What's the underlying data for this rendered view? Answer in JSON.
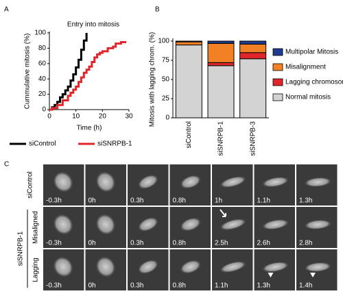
{
  "panel_labels": [
    "A",
    "B",
    "C"
  ],
  "chart_data": [
    {
      "type": "line",
      "title": "Entry into mitosis",
      "x_label": "Time (h)",
      "y_label": "Cummulative mitosis (%)",
      "xlim": [
        0,
        30
      ],
      "xticks": [
        0,
        10,
        20,
        30
      ],
      "ylim": [
        0,
        100
      ],
      "yticks": [
        0,
        20,
        40,
        60,
        80,
        100
      ],
      "step": "post",
      "legend": "bottom",
      "series": [
        {
          "name": "siControl",
          "color": "#000000",
          "x": [
            0,
            1,
            2,
            3,
            4,
            5,
            6,
            7,
            8,
            9,
            10,
            11,
            12,
            13,
            14
          ],
          "values": [
            0,
            3,
            6,
            10,
            16,
            20,
            25,
            30,
            38,
            46,
            55,
            65,
            78,
            90,
            100
          ]
        },
        {
          "name": "siSNRPB-1",
          "color": "#e0262b",
          "x": [
            0,
            1,
            3,
            5,
            7,
            8,
            9,
            10,
            11,
            12,
            13,
            14,
            15,
            16,
            17,
            18,
            19,
            20,
            22,
            24,
            25,
            27,
            29
          ],
          "values": [
            0,
            2,
            6,
            12,
            18,
            22,
            26,
            30,
            36,
            42,
            48,
            52,
            56,
            62,
            68,
            72,
            74,
            76,
            80,
            82,
            86,
            88,
            88
          ]
        }
      ]
    },
    {
      "type": "stacked_bar",
      "y_label": "Mitosis with lagging chrom. (%)",
      "categories": [
        "siControl",
        "siSNRPB-1",
        "siSNRPB-3"
      ],
      "ylim": [
        0,
        100
      ],
      "yticks": [
        0,
        25,
        50,
        75,
        100
      ],
      "legend": "right",
      "series": [
        {
          "name": "Normal mitosis",
          "color": "#d3d3d3",
          "values": [
            95,
            68,
            77
          ]
        },
        {
          "name": "Lagging chromosomes",
          "color": "#e0262b",
          "values": [
            0,
            4,
            8
          ]
        },
        {
          "name": "Misalignment",
          "color": "#f28126",
          "values": [
            4,
            25,
            11
          ]
        },
        {
          "name": "Multipolar Mitosis",
          "color": "#1f3c8f",
          "values": [
            1,
            3,
            4
          ]
        }
      ]
    }
  ],
  "microscopy": {
    "group_label": "siSNRPB-1",
    "rows": [
      {
        "label": "siControl",
        "times": [
          "-0.3h",
          "0h",
          "0.3h",
          "0.8h",
          "1h",
          "1.1h",
          "1.3h"
        ]
      },
      {
        "label": "Misaligned",
        "times": [
          "-0.3h",
          "0h",
          "0.3h",
          "0.8h",
          "2.5h",
          "2.6h",
          "2.8h"
        ]
      },
      {
        "label": "Lagging",
        "times": [
          "-0.3h",
          "0h",
          "0.3h",
          "0.8h",
          "1.1h",
          "1.3h",
          "1.4h"
        ]
      }
    ]
  }
}
